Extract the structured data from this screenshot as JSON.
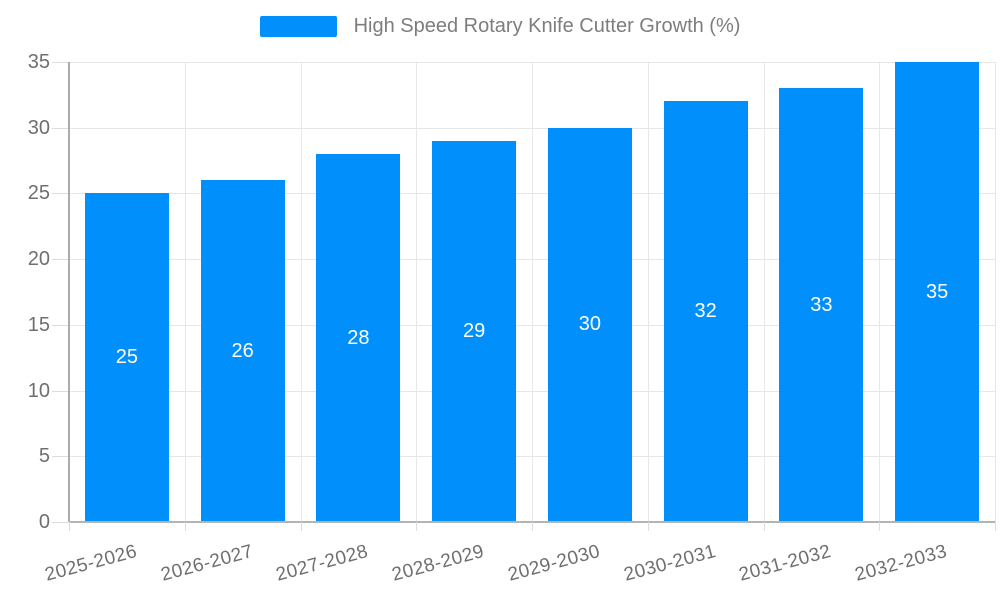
{
  "chart_data": {
    "type": "bar",
    "title": "High Speed Rotary Knife Cutter Growth (%)",
    "categories": [
      "2025-2026",
      "2026-2027",
      "2027-2028",
      "2028-2029",
      "2029-2030",
      "2030-2031",
      "2031-2032",
      "2032-2033"
    ],
    "series": [
      {
        "name": "High Speed Rotary Knife Cutter Growth (%)",
        "values": [
          25,
          26,
          28,
          29,
          30,
          32,
          33,
          35
        ]
      }
    ],
    "xlabel": "",
    "ylabel": "",
    "ylim": [
      0,
      35
    ],
    "yticks": [
      0,
      5,
      10,
      15,
      20,
      25,
      30,
      35
    ],
    "grid": true,
    "legend_position": "top",
    "bar_color": "#008FFB",
    "value_label_color": "#ffffff",
    "axis_label_color": "#6f6f6f",
    "legend_label_color": "#7d7d7d",
    "gridline_color": "#e7e7e7"
  }
}
